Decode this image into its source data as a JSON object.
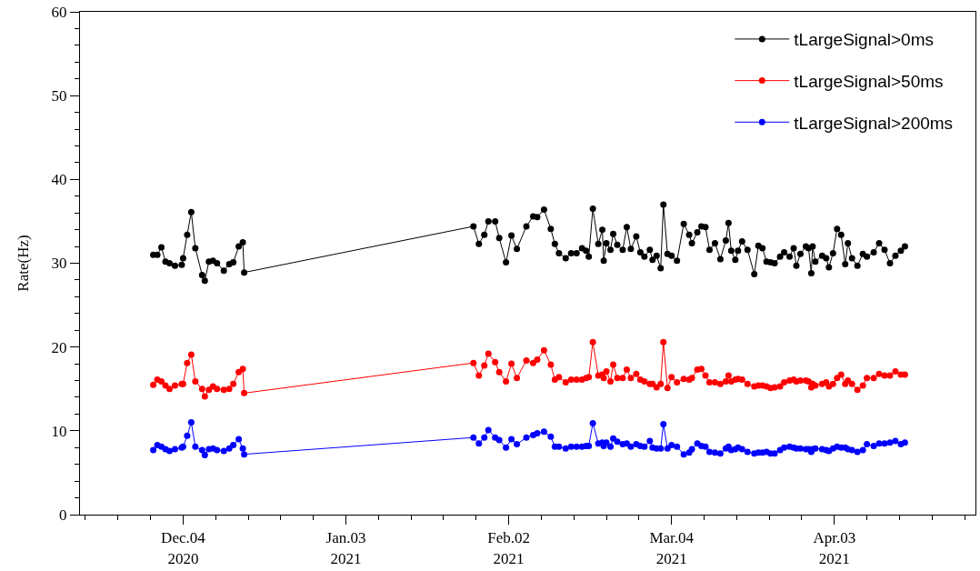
{
  "chart_data": {
    "type": "line",
    "ylabel": "Rate(Hz)",
    "x": [
      "2020-11-28T12:00",
      "2020-11-29T06:00",
      "2020-11-30T00:00",
      "2020-11-30T18:00",
      "2020-12-01T12:00",
      "2020-12-02T12:00",
      "2020-12-03T18:00",
      "2020-12-04T00:00",
      "2020-12-04T18:00",
      "2020-12-05T12:00",
      "2020-12-06T06:00",
      "2020-12-07T12:00",
      "2020-12-08T00:00",
      "2020-12-08T18:00",
      "2020-12-09T12:00",
      "2020-12-10T06:00",
      "2020-12-11T12:00",
      "2020-12-12T12:00",
      "2020-12-13T06:00",
      "2020-12-14T06:00",
      "2020-12-15T00:00",
      "2020-12-15T06:00",
      "2021-01-26T12:00",
      "2021-01-27T12:00",
      "2021-01-28T12:00",
      "2021-01-29T06:00",
      "2021-01-30T12:00",
      "2021-01-31T06:00",
      "2021-02-01T12:00",
      "2021-02-02T12:00",
      "2021-02-03T12:00",
      "2021-02-05T06:00",
      "2021-02-06T12:00",
      "2021-02-07T06:00",
      "2021-02-08T12:00",
      "2021-02-09T18:00",
      "2021-02-10T12:00",
      "2021-02-11T06:00",
      "2021-02-12T12:00",
      "2021-02-13T12:00",
      "2021-02-14T12:00",
      "2021-02-15T12:00",
      "2021-02-16T06:00",
      "2021-02-16T18:00",
      "2021-02-17T12:00",
      "2021-02-18T12:00",
      "2021-02-19T06:00",
      "2021-02-19T12:00",
      "2021-02-20T00:00",
      "2021-02-20T18:00",
      "2021-02-21T06:00",
      "2021-02-22T00:00",
      "2021-02-23T00:00",
      "2021-02-23T18:00",
      "2021-02-24T12:00",
      "2021-02-25T12:00",
      "2021-02-26T06:00",
      "2021-02-27T00:00",
      "2021-02-28T00:00",
      "2021-02-28T12:00",
      "2021-03-01T06:00",
      "2021-03-02T00:00",
      "2021-03-02T12:00",
      "2021-03-03T06:00",
      "2021-03-04T00:00",
      "2021-03-05T00:00",
      "2021-03-06T06:00",
      "2021-03-07T06:00",
      "2021-03-07T18:00",
      "2021-03-08T18:00",
      "2021-03-09T12:00",
      "2021-03-10T06:00",
      "2021-03-11T00:00",
      "2021-03-12T00:00",
      "2021-03-13T00:00",
      "2021-03-14T00:00",
      "2021-03-14T12:00",
      "2021-03-15T00:00",
      "2021-03-15T18:00",
      "2021-03-16T06:00",
      "2021-03-17T00:00",
      "2021-03-18T00:00",
      "2021-03-19T06:00",
      "2021-03-20T00:00",
      "2021-03-20T18:00",
      "2021-03-21T12:00",
      "2021-03-22T06:00",
      "2021-03-23T00:00",
      "2021-03-24T00:00",
      "2021-03-24T18:00",
      "2021-03-25T18:00",
      "2021-03-26T12:00",
      "2021-03-27T00:00",
      "2021-03-27T18:00",
      "2021-03-28T18:00",
      "2021-03-29T06:00",
      "2021-03-29T18:00",
      "2021-03-30T00:00",
      "2021-03-30T12:00",
      "2021-03-31T18:00",
      "2021-04-01T12:00",
      "2021-04-02T00:00",
      "2021-04-02T18:00",
      "2021-04-03T12:00",
      "2021-04-04T06:00",
      "2021-04-05T00:00",
      "2021-04-05T12:00",
      "2021-04-06T06:00",
      "2021-04-07T06:00",
      "2021-04-08T06:00",
      "2021-04-09T00:00",
      "2021-04-10T06:00",
      "2021-04-11T06:00",
      "2021-04-12T06:00",
      "2021-04-13T06:00",
      "2021-04-14T06:00",
      "2021-04-15T06:00",
      "2021-04-16T00:00"
    ],
    "series": [
      {
        "name": "tLargeSignal>0ms",
        "color": "#000000",
        "values": [
          31.0,
          31.0,
          31.9,
          30.2,
          30.0,
          29.7,
          29.8,
          30.6,
          33.4,
          36.1,
          31.8,
          28.6,
          27.9,
          30.2,
          30.3,
          30.0,
          29.1,
          29.9,
          30.1,
          32.0,
          32.5,
          28.9,
          34.4,
          32.3,
          33.4,
          35.0,
          35.0,
          33.0,
          30.1,
          33.3,
          31.7,
          34.4,
          35.6,
          35.5,
          36.4,
          34.1,
          32.3,
          31.2,
          30.6,
          31.2,
          31.2,
          31.8,
          31.5,
          30.8,
          36.5,
          32.3,
          34.0,
          30.3,
          32.4,
          31.6,
          33.5,
          32.2,
          31.6,
          34.3,
          31.7,
          33.2,
          31.3,
          30.8,
          31.6,
          30.4,
          30.9,
          29.4,
          37.0,
          31.1,
          30.9,
          30.3,
          34.7,
          33.4,
          32.4,
          33.7,
          34.4,
          34.3,
          31.6,
          32.4,
          30.5,
          32.7,
          34.8,
          31.5,
          30.4,
          31.5,
          32.6,
          31.6,
          28.7,
          32.1,
          31.8,
          30.2,
          30.1,
          30.0,
          30.8,
          31.3,
          30.8,
          31.8,
          29.7,
          31.1,
          32.0,
          31.8,
          28.8,
          32.0,
          30.2,
          30.9,
          30.6,
          29.5,
          31.2,
          34.1,
          33.4,
          29.9,
          32.4,
          30.6,
          29.7,
          31.1,
          30.8,
          31.3,
          32.4,
          31.6,
          30.0,
          30.9,
          31.5,
          32.0
        ]
      },
      {
        "name": "tLargeSignal>50ms",
        "color": "#ff0000",
        "values": [
          15.5,
          16.1,
          15.9,
          15.4,
          15.0,
          15.4,
          15.6,
          15.6,
          18.1,
          19.1,
          15.9,
          15.0,
          14.1,
          14.9,
          15.3,
          15.0,
          14.9,
          15.0,
          15.6,
          17.0,
          17.4,
          14.5,
          18.1,
          16.6,
          17.8,
          19.2,
          18.2,
          17.0,
          15.9,
          18.0,
          16.3,
          18.4,
          18.1,
          18.5,
          19.6,
          17.9,
          16.1,
          16.4,
          15.8,
          16.1,
          16.1,
          16.1,
          16.3,
          16.4,
          20.6,
          16.6,
          16.7,
          16.3,
          17.1,
          15.9,
          17.9,
          16.3,
          16.3,
          17.3,
          16.3,
          16.8,
          16.1,
          15.9,
          15.6,
          15.6,
          15.2,
          15.6,
          20.6,
          15.1,
          16.4,
          15.8,
          16.2,
          16.1,
          16.3,
          17.3,
          17.4,
          16.6,
          15.8,
          15.8,
          15.6,
          15.9,
          16.6,
          15.9,
          16.1,
          16.2,
          16.1,
          15.6,
          15.3,
          15.4,
          15.4,
          15.3,
          15.1,
          15.2,
          15.3,
          15.8,
          16.0,
          16.1,
          15.9,
          16.0,
          16.0,
          15.9,
          15.2,
          15.6,
          15.4,
          15.6,
          15.8,
          15.3,
          15.6,
          16.3,
          16.7,
          15.6,
          16.0,
          15.6,
          14.9,
          15.4,
          16.3,
          16.3,
          16.8,
          16.6,
          16.6,
          17.1,
          16.7,
          16.7
        ]
      },
      {
        "name": "tLargeSignal>200ms",
        "color": "#0000ff",
        "values": [
          7.7,
          8.3,
          8.1,
          7.8,
          7.6,
          7.8,
          8.0,
          8.1,
          9.4,
          11.0,
          8.1,
          7.7,
          7.1,
          7.8,
          7.9,
          7.7,
          7.6,
          7.9,
          8.3,
          9.0,
          7.9,
          7.2,
          9.2,
          8.5,
          9.2,
          10.1,
          9.2,
          8.9,
          8.0,
          9.0,
          8.4,
          9.2,
          9.5,
          9.7,
          9.9,
          9.3,
          8.1,
          8.1,
          7.9,
          8.1,
          8.1,
          8.1,
          8.2,
          8.2,
          10.9,
          8.5,
          8.6,
          8.2,
          8.6,
          8.1,
          9.1,
          8.7,
          8.4,
          8.5,
          8.1,
          8.4,
          8.2,
          8.1,
          8.8,
          8.0,
          7.9,
          7.9,
          10.8,
          7.9,
          8.3,
          8.1,
          7.2,
          7.4,
          7.8,
          8.5,
          8.2,
          8.1,
          7.5,
          7.4,
          7.3,
          7.9,
          8.1,
          7.7,
          7.8,
          8.0,
          7.8,
          7.5,
          7.3,
          7.4,
          7.4,
          7.5,
          7.3,
          7.3,
          7.7,
          8.0,
          8.1,
          8.0,
          7.9,
          7.9,
          7.8,
          7.8,
          7.5,
          7.8,
          7.9,
          7.8,
          7.7,
          7.6,
          7.9,
          8.1,
          8.0,
          8.0,
          7.8,
          7.7,
          7.5,
          7.7,
          8.4,
          8.2,
          8.5,
          8.5,
          8.6,
          8.8,
          8.4,
          8.6
        ]
      }
    ],
    "xlim": [
      "2020-11-15",
      "2021-04-29"
    ],
    "xticks": [
      {
        "value": "2020-12-04",
        "label": "Dec.04\n2020"
      },
      {
        "value": "2021-01-03",
        "label": "Jan.03\n2021"
      },
      {
        "value": "2021-02-02",
        "label": "Feb.02\n2021"
      },
      {
        "value": "2021-03-04",
        "label": "Mar.04\n2021"
      },
      {
        "value": "2021-04-03",
        "label": "Apr.03\n2021"
      }
    ],
    "ylim": [
      0,
      60
    ],
    "yticks": [
      0,
      10,
      20,
      30,
      40,
      50,
      60
    ],
    "legend": "top right",
    "marker": "circle",
    "line_style": "solid"
  }
}
